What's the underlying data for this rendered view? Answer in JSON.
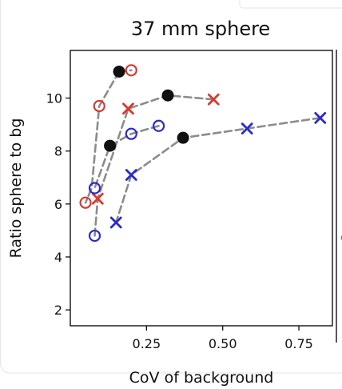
{
  "chart_data": {
    "type": "scatter",
    "title": "37 mm sphere",
    "xlabel": "CoV of background",
    "ylabel": "Ratio sphere to bg",
    "xlim": [
      0.0,
      0.86
    ],
    "ylim": [
      1.4,
      11.8
    ],
    "xticks": [
      0.25,
      0.5,
      0.75
    ],
    "xtick_labels": [
      "0.25",
      "0.50",
      "0.75"
    ],
    "yticks": [
      2,
      4,
      6,
      8,
      10
    ],
    "ytick_labels": [
      "2",
      "4",
      "6",
      "8",
      "10"
    ],
    "grid": false,
    "colors": {
      "black": "#111111",
      "red": "#d63a2f",
      "blue": "#2b2bc8",
      "line": "#8c8c8c"
    },
    "lines": [
      {
        "x": [
          0.16,
          0.095,
          0.07,
          0.05
        ],
        "y": [
          11.0,
          9.7,
          6.6,
          6.05
        ]
      },
      {
        "x": [
          0.16,
          0.2
        ],
        "y": [
          11.0,
          11.05
        ]
      },
      {
        "x": [
          0.47,
          0.32,
          0.19,
          0.09,
          0.08
        ],
        "y": [
          9.95,
          10.1,
          9.6,
          6.2,
          4.8
        ]
      },
      {
        "x": [
          0.29,
          0.2,
          0.13,
          0.08
        ],
        "y": [
          8.95,
          8.65,
          8.2,
          6.6
        ]
      },
      {
        "x": [
          0.82,
          0.58,
          0.37,
          0.2,
          0.15
        ],
        "y": [
          9.25,
          8.85,
          8.5,
          7.1,
          5.3
        ]
      }
    ],
    "series": [
      {
        "marker": "filled",
        "color": "black",
        "x": [
          0.16,
          0.32,
          0.13,
          0.37
        ],
        "y": [
          11.0,
          10.1,
          8.2,
          8.5
        ]
      },
      {
        "marker": "circle",
        "color": "red",
        "x": [
          0.2,
          0.095,
          0.05
        ],
        "y": [
          11.05,
          9.7,
          6.05
        ]
      },
      {
        "marker": "x",
        "color": "red",
        "x": [
          0.19,
          0.47,
          0.09
        ],
        "y": [
          9.6,
          9.95,
          6.2
        ]
      },
      {
        "marker": "circle",
        "color": "blue",
        "x": [
          0.2,
          0.29,
          0.08,
          0.08
        ],
        "y": [
          8.65,
          8.95,
          6.6,
          4.8
        ]
      },
      {
        "marker": "x",
        "color": "blue",
        "x": [
          0.82,
          0.58,
          0.2,
          0.15
        ],
        "y": [
          9.25,
          8.85,
          7.1,
          5.3
        ]
      }
    ]
  }
}
